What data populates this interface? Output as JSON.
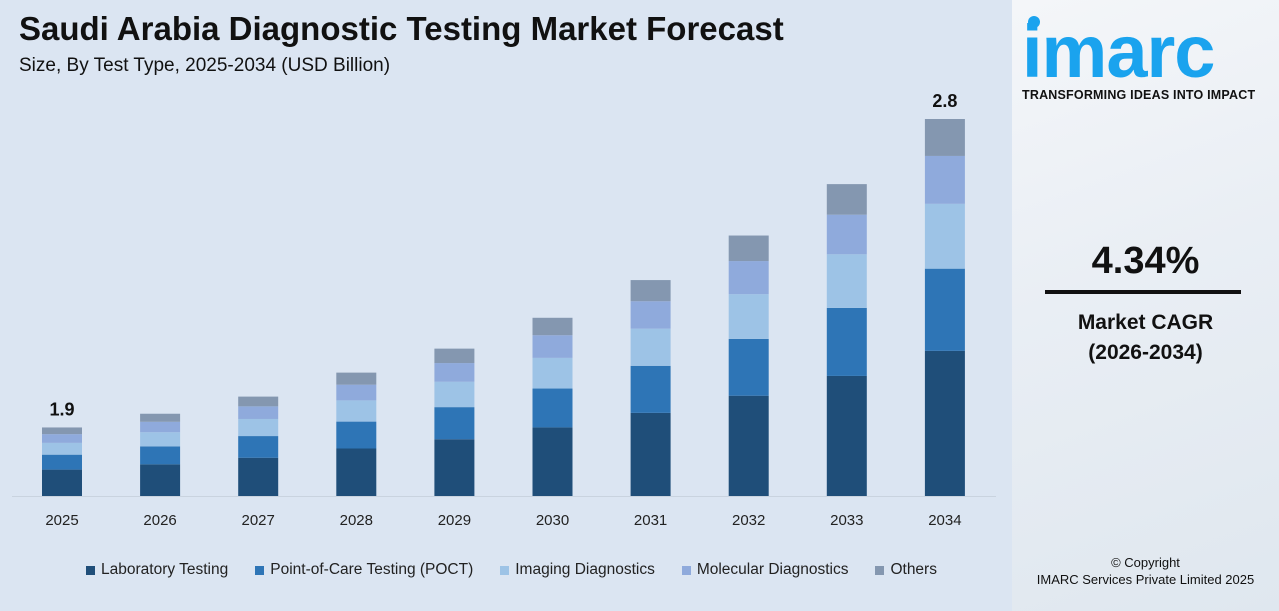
{
  "title": "Saudi Arabia Diagnostic Testing Market Forecast",
  "subtitle": "Size, By Test Type, 2025-2034 (USD Billion)",
  "brand": {
    "logo": "imarc",
    "tagline": "TRANSFORMING IDEAS INTO IMPACT",
    "color": "#1aa3ee"
  },
  "cagr": {
    "value": "4.34%",
    "label": "Market CAGR",
    "period": "(2026-2034)"
  },
  "copyright": {
    "line1": "© Copyright",
    "line2": "IMARC Services Private Limited 2025"
  },
  "chart_data": {
    "type": "bar",
    "stacked": true,
    "title": "Saudi Arabia Diagnostic Testing Market Forecast",
    "subtitle": "Size, By Test Type, 2025-2034 (USD Billion)",
    "categories": [
      "2025",
      "2026",
      "2027",
      "2028",
      "2029",
      "2030",
      "2031",
      "2032",
      "2033",
      "2034"
    ],
    "totals": [
      1.9,
      1.94,
      1.99,
      2.06,
      2.13,
      2.22,
      2.33,
      2.46,
      2.61,
      2.8
    ],
    "total_labels": {
      "0": "1.9",
      "9": "2.8"
    },
    "ylim": [
      1.7,
      2.9
    ],
    "grid": false,
    "legend": "bottom",
    "series": [
      {
        "name": "Laboratory Testing",
        "color": "#1f4e79",
        "share": 0.385
      },
      {
        "name": "Point-of-Care Testing (POCT)",
        "color": "#2e75b6",
        "share": 0.218
      },
      {
        "name": "Imaging Diagnostics",
        "color": "#9dc3e6",
        "share": 0.172
      },
      {
        "name": "Molecular Diagnostics",
        "color": "#8faadc",
        "share": 0.127
      },
      {
        "name": "Others",
        "color": "#8497b0",
        "share": 0.098
      }
    ]
  }
}
